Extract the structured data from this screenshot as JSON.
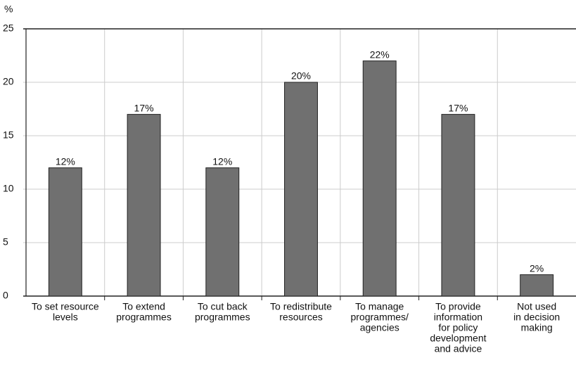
{
  "chart_data": {
    "type": "bar",
    "y_label": "%",
    "categories": [
      [
        "To set resource",
        "levels"
      ],
      [
        "To extend",
        "programmes"
      ],
      [
        "To cut back",
        "programmes"
      ],
      [
        "To redistribute",
        "resources"
      ],
      [
        "To manage",
        "programmes/",
        "agencies"
      ],
      [
        "To provide",
        "information",
        "for policy",
        "development",
        "and advice"
      ],
      [
        "Not used",
        "in decision",
        "making"
      ]
    ],
    "values": [
      12,
      17,
      12,
      20,
      22,
      17,
      2
    ],
    "value_labels": [
      "12%",
      "17%",
      "12%",
      "20%",
      "22%",
      "17%",
      "2%"
    ],
    "color": "#707070",
    "ylim": [
      0,
      25
    ],
    "yticks": [
      0,
      5,
      10,
      15,
      20,
      25
    ],
    "grid": true
  }
}
